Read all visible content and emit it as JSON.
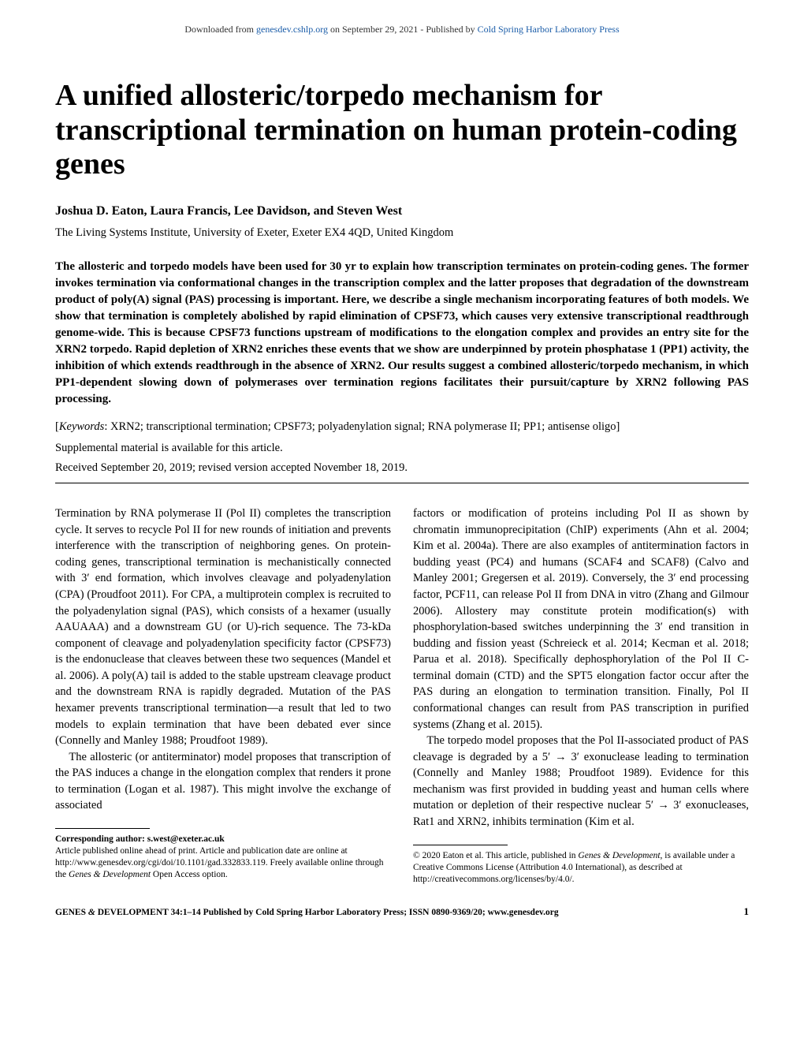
{
  "download_bar": {
    "prefix": "Downloaded from ",
    "link1_text": "genesdev.cshlp.org",
    "middle": " on September 29, 2021 - Published by ",
    "link2_text": "Cold Spring Harbor Laboratory Press"
  },
  "title": "A unified allosteric/torpedo mechanism for transcriptional termination on human protein-coding genes",
  "authors": "Joshua D. Eaton, Laura Francis, Lee Davidson, and Steven West",
  "affiliation": "The Living Systems Institute, University of Exeter, Exeter EX4 4QD, United Kingdom",
  "abstract": "The allosteric and torpedo models have been used for 30 yr to explain how transcription terminates on protein-coding genes. The former invokes termination via conformational changes in the transcription complex and the latter proposes that degradation of the downstream product of poly(A) signal (PAS) processing is important. Here, we describe a single mechanism incorporating features of both models. We show that termination is completely abolished by rapid elimination of CPSF73, which causes very extensive transcriptional readthrough genome-wide. This is because CPSF73 functions upstream of modifications to the elongation complex and provides an entry site for the XRN2 torpedo. Rapid depletion of XRN2 enriches these events that we show are underpinned by protein phosphatase 1 (PP1) activity, the inhibition of which extends readthrough in the absence of XRN2. Our results suggest a combined allosteric/torpedo mechanism, in which PP1-dependent slowing down of polymerases over termination regions facilitates their pursuit/capture by XRN2 following PAS processing.",
  "keywords_label": "Keywords",
  "keywords_text": ": XRN2; transcriptional termination; CPSF73; polyadenylation signal; RNA polymerase II; PP1; antisense oligo]",
  "supplemental": "Supplemental material is available for this article.",
  "dates": "Received September 20, 2019; revised version accepted November 18, 2019.",
  "body": {
    "left": {
      "p1": "Termination by RNA polymerase II (Pol II) completes the transcription cycle. It serves to recycle Pol II for new rounds of initiation and prevents interference with the transcription of neighboring genes. On protein-coding genes, transcriptional termination is mechanistically connected with 3′ end formation, which involves cleavage and polyadenylation (CPA) (Proudfoot 2011). For CPA, a multiprotein complex is recruited to the polyadenylation signal (PAS), which consists of a hexamer (usually AAUAAA) and a downstream GU (or U)-rich sequence. The 73-kDa component of cleavage and polyadenylation specificity factor (CPSF73) is the endonuclease that cleaves between these two sequences (Mandel et al. 2006). A poly(A) tail is added to the stable upstream cleavage product and the downstream RNA is rapidly degraded. Mutation of the PAS hexamer prevents transcriptional termination—a result that led to two models to explain termination that have been debated ever since (Connelly and Manley 1988; Proudfoot 1989).",
      "p2": "The allosteric (or antiterminator) model proposes that transcription of the PAS induces a change in the elongation complex that renders it prone to termination (Logan et al. 1987). This might involve the exchange of associated"
    },
    "right": {
      "p1": "factors or modification of proteins including Pol II as shown by chromatin immunoprecipitation (ChIP) experiments (Ahn et al. 2004; Kim et al. 2004a). There are also examples of antitermination factors in budding yeast (PC4) and humans (SCAF4 and SCAF8) (Calvo and Manley 2001; Gregersen et al. 2019). Conversely, the 3′ end processing factor, PCF11, can release Pol II from DNA in vitro (Zhang and Gilmour 2006). Allostery may constitute protein modification(s) with phosphorylation-based switches underpinning the 3′ end transition in budding and fission yeast (Schreieck et al. 2014; Kecman et al. 2018; Parua et al. 2018). Specifically dephosphorylation of the Pol II C-terminal domain (CTD) and the SPT5 elongation factor occur after the PAS during an elongation to termination transition. Finally, Pol II conformational changes can result from PAS transcription in purified systems (Zhang et al. 2015).",
      "p2": "The torpedo model proposes that the Pol II-associated product of PAS cleavage is degraded by a 5′ → 3′ exonuclease leading to termination (Connelly and Manley 1988; Proudfoot 1989). Evidence for this mechanism was first provided in budding yeast and human cells where mutation or depletion of their respective nuclear 5′ → 3′ exonucleases, Rat1 and XRN2, inhibits termination (Kim et al."
    }
  },
  "footnote": {
    "left": {
      "corresponding_label": "Corresponding author: ",
      "corresponding_email": "s.west@exeter.ac.uk",
      "article_note": "Article published online ahead of print. Article and publication date are online at http://www.genesdev.org/cgi/doi/10.1101/gad.332833.119. Freely available online through the ",
      "journal_ital": "Genes & Development",
      "article_note_tail": " Open Access option."
    },
    "right": {
      "copyright": "© 2020 Eaton et al.   This article, published in ",
      "journal_ital": "Genes & Development",
      "tail": ", is available under a Creative Commons License (Attribution 4.0 International), as described at http://creativecommons.org/licenses/by/4.0/."
    }
  },
  "footer": {
    "left_parts": {
      "a": "GENES ",
      "amp": "&",
      "b": " DEVELOPMENT 34:1–14 Published by Cold Spring Harbor Laboratory Press; ISSN 0890-9369/20; www.genesdev.org"
    },
    "page_number": "1"
  }
}
